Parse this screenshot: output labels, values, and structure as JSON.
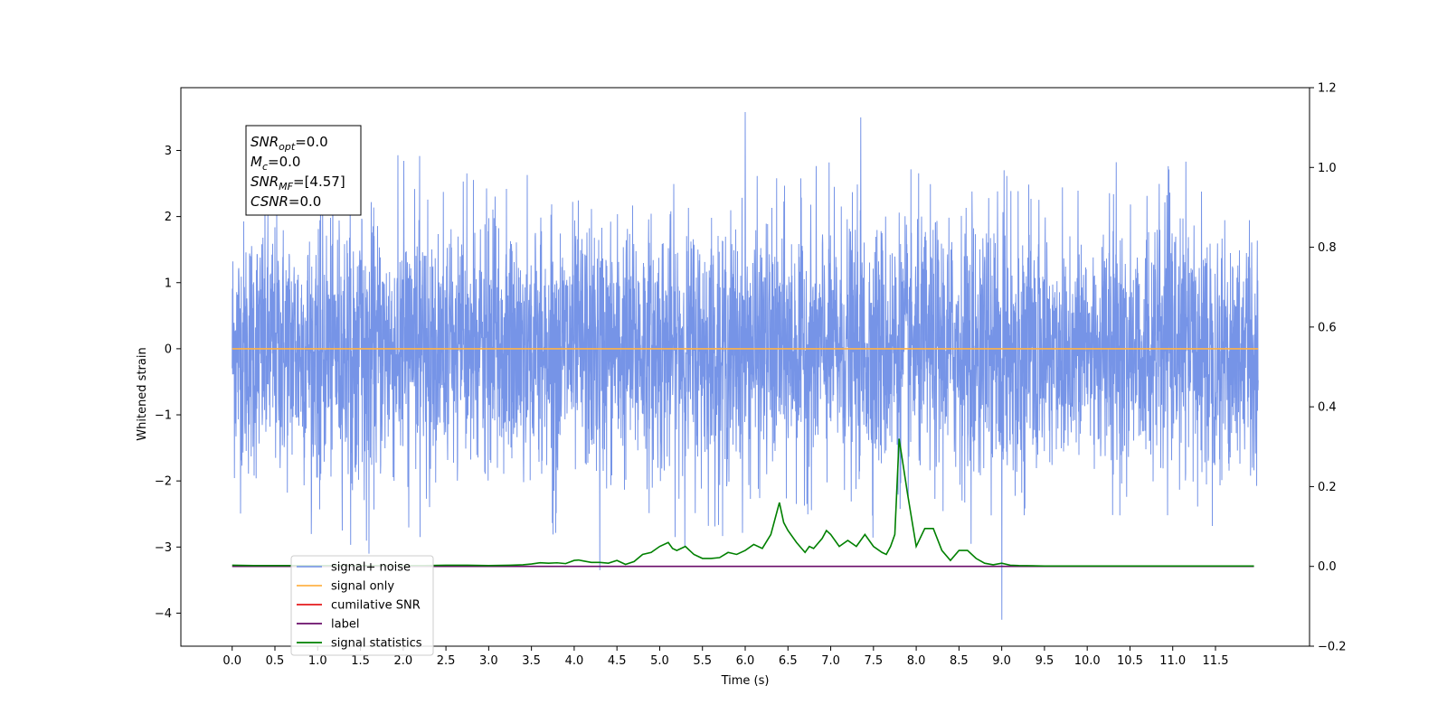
{
  "chart_data": {
    "type": "line",
    "xlabel": "Time (s)",
    "ylabel_left": "Whitened strain",
    "ylabel_right": "",
    "xlim": [
      -0.6,
      12.6
    ],
    "ylim_left": [
      -4.5,
      3.95
    ],
    "ylim_right": [
      -0.2,
      1.2
    ],
    "x_ticks": [
      "0.0",
      "0.5",
      "1.0",
      "1.5",
      "2.0",
      "2.5",
      "3.0",
      "3.5",
      "4.0",
      "4.5",
      "5.0",
      "5.5",
      "6.0",
      "6.5",
      "7.0",
      "7.5",
      "8.0",
      "8.5",
      "9.0",
      "9.5",
      "10.0",
      "10.5",
      "11.0",
      "11.5"
    ],
    "y_ticks_left": [
      "3",
      "2",
      "1",
      "0",
      "−1",
      "−2",
      "−3",
      "−4"
    ],
    "y_ticks_right": [
      "1.2",
      "1.0",
      "0.8",
      "0.6",
      "0.4",
      "0.2",
      "0.0",
      "−0.2"
    ],
    "grid": false,
    "legend_location": "lower-left",
    "series": [
      {
        "name": "signal+ noise",
        "axis": "left",
        "color": "#6f8ee6",
        "style": "noise",
        "x_range": [
          0.0,
          12.0
        ],
        "amplitude_std": 0.95,
        "notable_peaks": [
          [
            6.0,
            3.58
          ],
          [
            7.35,
            3.5
          ],
          [
            9.0,
            -4.1
          ],
          [
            4.3,
            -3.35
          ],
          [
            1.6,
            -3.1
          ]
        ]
      },
      {
        "name": "signal only",
        "axis": "left",
        "color": "#ffb347",
        "x": [
          0.0,
          12.0
        ],
        "y": [
          0.0,
          0.0
        ]
      },
      {
        "name": "cumilative SNR",
        "axis": "right",
        "color": "#e41a1c",
        "x": [],
        "y": []
      },
      {
        "name": "label",
        "axis": "right",
        "color": "#6a0d6a",
        "x": [
          0.0,
          11.95
        ],
        "y": [
          0.0,
          0.0
        ]
      },
      {
        "name": "signal statistics",
        "axis": "right",
        "color": "#008000",
        "x": [
          0.0,
          0.25,
          0.5,
          0.75,
          1.0,
          1.25,
          1.5,
          1.75,
          2.0,
          2.25,
          2.5,
          2.75,
          3.0,
          3.25,
          3.4,
          3.5,
          3.6,
          3.7,
          3.8,
          3.9,
          4.0,
          4.05,
          4.1,
          4.2,
          4.3,
          4.4,
          4.5,
          4.6,
          4.7,
          4.8,
          4.9,
          5.0,
          5.1,
          5.15,
          5.2,
          5.3,
          5.4,
          5.5,
          5.6,
          5.7,
          5.8,
          5.9,
          6.0,
          6.1,
          6.2,
          6.3,
          6.35,
          6.4,
          6.45,
          6.5,
          6.6,
          6.7,
          6.75,
          6.8,
          6.9,
          6.95,
          7.0,
          7.1,
          7.2,
          7.3,
          7.4,
          7.5,
          7.6,
          7.65,
          7.7,
          7.75,
          7.8,
          7.85,
          7.9,
          8.0,
          8.1,
          8.2,
          8.3,
          8.4,
          8.5,
          8.6,
          8.7,
          8.8,
          8.9,
          9.0,
          9.1,
          9.2,
          9.5,
          10.0,
          10.5,
          11.0,
          11.5,
          11.95
        ],
        "y": [
          0.003,
          0.002,
          0.002,
          0.002,
          0.002,
          0.002,
          0.002,
          0.002,
          0.002,
          0.002,
          0.003,
          0.003,
          0.002,
          0.003,
          0.004,
          0.006,
          0.009,
          0.008,
          0.009,
          0.007,
          0.015,
          0.016,
          0.014,
          0.01,
          0.01,
          0.008,
          0.015,
          0.005,
          0.012,
          0.03,
          0.035,
          0.05,
          0.06,
          0.045,
          0.04,
          0.05,
          0.03,
          0.02,
          0.02,
          0.022,
          0.035,
          0.03,
          0.04,
          0.055,
          0.045,
          0.08,
          0.12,
          0.16,
          0.11,
          0.09,
          0.06,
          0.035,
          0.05,
          0.045,
          0.07,
          0.09,
          0.08,
          0.05,
          0.065,
          0.05,
          0.08,
          0.05,
          0.035,
          0.03,
          0.05,
          0.08,
          0.32,
          0.25,
          0.18,
          0.05,
          0.095,
          0.095,
          0.04,
          0.015,
          0.04,
          0.04,
          0.02,
          0.008,
          0.004,
          0.008,
          0.003,
          0.002,
          0.001,
          0.001,
          0.001,
          0.001,
          0.001,
          0.001
        ]
      }
    ],
    "annotation_box": {
      "lines": [
        {
          "main": "SNR",
          "sub": "opt",
          "rest": "=0.0"
        },
        {
          "main": "M",
          "sub": "c",
          "rest": "=0.0"
        },
        {
          "main": "SNR",
          "sub": "MF",
          "rest": "=[4.57]"
        },
        {
          "main": "CSNR",
          "sub": "",
          "rest": "=0.0"
        }
      ]
    }
  }
}
